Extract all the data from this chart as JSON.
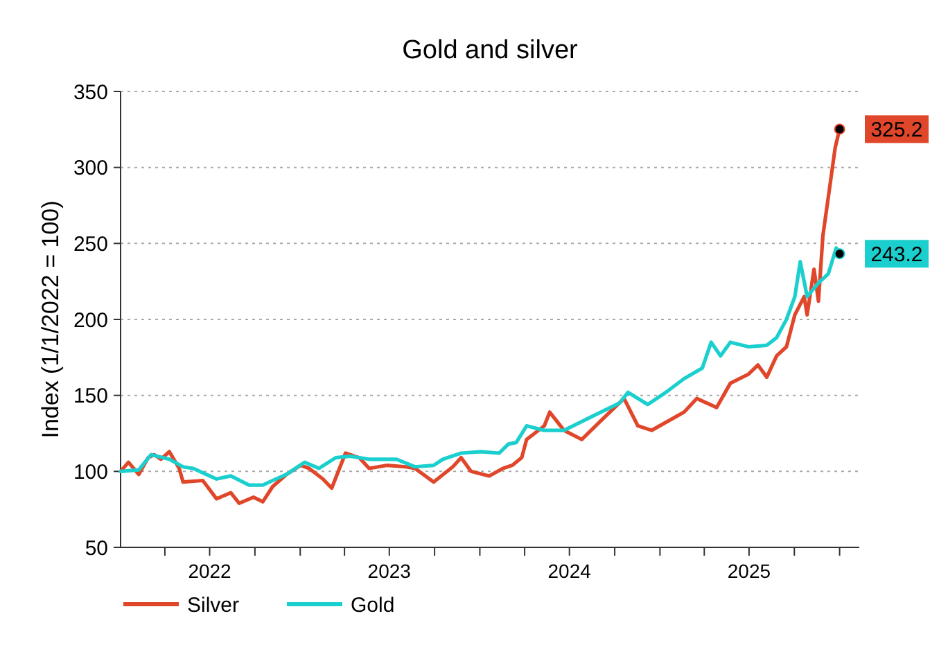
{
  "chart_data": {
    "type": "line",
    "title": "Gold and silver",
    "ylabel": "Index (1/1/2022 = 100)",
    "xlim": [
      "2022-01-01",
      "2026-02-10"
    ],
    "xticks": [
      {
        "value": "2022-04-01",
        "label": null
      },
      {
        "value": "2022-07-01",
        "label": "2022"
      },
      {
        "value": "2022-10-01",
        "label": null
      },
      {
        "value": "2023-01-01",
        "label": null
      },
      {
        "value": "2023-04-01",
        "label": null
      },
      {
        "value": "2023-07-01",
        "label": "2023"
      },
      {
        "value": "2023-10-01",
        "label": null
      },
      {
        "value": "2024-01-01",
        "label": null
      },
      {
        "value": "2024-04-01",
        "label": null
      },
      {
        "value": "2024-07-01",
        "label": "2024"
      },
      {
        "value": "2024-10-01",
        "label": null
      },
      {
        "value": "2025-01-01",
        "label": null
      },
      {
        "value": "2025-04-01",
        "label": null
      },
      {
        "value": "2025-07-01",
        "label": "2025"
      },
      {
        "value": "2025-10-01",
        "label": null
      },
      {
        "value": "2026-01-01",
        "label": null
      }
    ],
    "ylim": [
      50,
      350
    ],
    "yticks": [
      50,
      100,
      150,
      200,
      250,
      300,
      350
    ],
    "grid": "y",
    "legend": "bottom left",
    "marker": "none",
    "line_style": "solid",
    "series": [
      {
        "name": "Silver",
        "color": "#e0462a",
        "x": [
          "2022-01-01",
          "2022-01-17",
          "2022-02-07",
          "2022-02-26",
          "2022-03-10",
          "2022-03-24",
          "2022-04-10",
          "2022-04-30",
          "2022-05-08",
          "2022-06-17",
          "2022-07-15",
          "2022-08-13",
          "2022-08-30",
          "2022-09-28",
          "2022-10-17",
          "2022-11-06",
          "2022-12-04",
          "2023-01-02",
          "2023-01-19",
          "2023-02-16",
          "2023-03-06",
          "2023-04-03",
          "2023-05-01",
          "2023-05-21",
          "2023-06-27",
          "2023-08-03",
          "2023-08-22",
          "2023-09-29",
          "2023-11-07",
          "2023-11-24",
          "2023-12-14",
          "2024-01-20",
          "2024-02-17",
          "2024-03-07",
          "2024-03-26",
          "2024-04-05",
          "2024-05-11",
          "2024-05-22",
          "2024-06-20",
          "2024-07-26",
          "2024-09-02",
          "2024-10-20",
          "2024-11-17",
          "2024-12-15",
          "2025-02-19",
          "2025-03-17",
          "2025-04-26",
          "2025-05-24",
          "2025-06-30",
          "2025-07-19",
          "2025-08-06",
          "2025-08-26",
          "2025-09-15",
          "2025-10-02",
          "2025-10-21",
          "2025-10-27",
          "2025-11-10",
          "2025-11-19",
          "2025-11-28",
          "2025-12-11",
          "2025-12-23",
          "2026-01-01"
        ],
        "values": [
          100,
          106,
          98,
          109,
          111,
          108,
          113,
          102,
          93,
          94,
          82,
          86,
          79,
          83,
          80,
          90,
          98,
          104,
          102,
          95,
          89,
          112,
          109,
          102,
          104,
          103,
          102,
          93,
          103,
          109,
          100,
          97,
          102,
          104,
          109,
          121,
          130,
          139,
          127,
          121,
          133,
          148,
          130,
          127,
          139,
          148,
          142,
          158,
          164,
          170,
          162,
          176,
          182,
          203,
          215,
          203,
          233,
          212,
          255,
          285,
          313,
          325.2
        ],
        "value_labels": [
          null,
          null,
          null,
          null,
          null,
          null,
          null,
          null,
          null,
          null,
          null,
          null,
          null,
          null,
          null,
          null,
          null,
          null,
          null,
          null,
          null,
          null,
          null,
          null,
          null,
          null,
          null,
          null,
          null,
          null,
          null,
          null,
          null,
          null,
          null,
          null,
          null,
          null,
          null,
          null,
          null,
          null,
          null,
          null,
          null,
          null,
          null,
          null,
          null,
          null,
          null,
          null,
          null,
          null,
          null,
          null,
          null,
          null,
          null,
          null,
          null,
          "325.2"
        ]
      },
      {
        "name": "Gold",
        "color": "#1ccfcf",
        "x": [
          "2022-01-01",
          "2022-02-07",
          "2022-03-04",
          "2022-04-10",
          "2022-05-08",
          "2022-05-28",
          "2022-07-15",
          "2022-08-13",
          "2022-09-19",
          "2022-10-17",
          "2022-11-06",
          "2022-12-04",
          "2023-01-10",
          "2023-02-08",
          "2023-03-14",
          "2023-04-12",
          "2023-05-21",
          "2023-07-16",
          "2023-08-22",
          "2023-09-29",
          "2023-10-18",
          "2023-11-24",
          "2024-01-03",
          "2024-02-09",
          "2024-02-28",
          "2024-03-15",
          "2024-04-05",
          "2024-05-11",
          "2024-06-20",
          "2024-08-15",
          "2024-10-11",
          "2024-10-28",
          "2024-12-07",
          "2025-01-13",
          "2025-02-19",
          "2025-03-28",
          "2025-04-15",
          "2025-05-04",
          "2025-05-24",
          "2025-06-30",
          "2025-08-06",
          "2025-08-26",
          "2025-09-15",
          "2025-10-02",
          "2025-10-13",
          "2025-10-27",
          "2025-11-19",
          "2025-12-09",
          "2025-12-25",
          "2026-01-01"
        ],
        "values": [
          100,
          101,
          111,
          108,
          103,
          102,
          95,
          97,
          91,
          91,
          94,
          98,
          106,
          102,
          109,
          110,
          108,
          108,
          103,
          104,
          108,
          112,
          113,
          112,
          118,
          119,
          130,
          127,
          127,
          136,
          145,
          152,
          144,
          152,
          161,
          168,
          185,
          176,
          185,
          182,
          183,
          188,
          200,
          215,
          238,
          215,
          224,
          230,
          247,
          243.2
        ],
        "value_labels": [
          null,
          null,
          null,
          null,
          null,
          null,
          null,
          null,
          null,
          null,
          null,
          null,
          null,
          null,
          null,
          null,
          null,
          null,
          null,
          null,
          null,
          null,
          null,
          null,
          null,
          null,
          null,
          null,
          null,
          null,
          null,
          null,
          null,
          null,
          null,
          null,
          null,
          null,
          null,
          null,
          null,
          null,
          null,
          null,
          null,
          null,
          null,
          null,
          null,
          "243.2"
        ]
      }
    ]
  }
}
